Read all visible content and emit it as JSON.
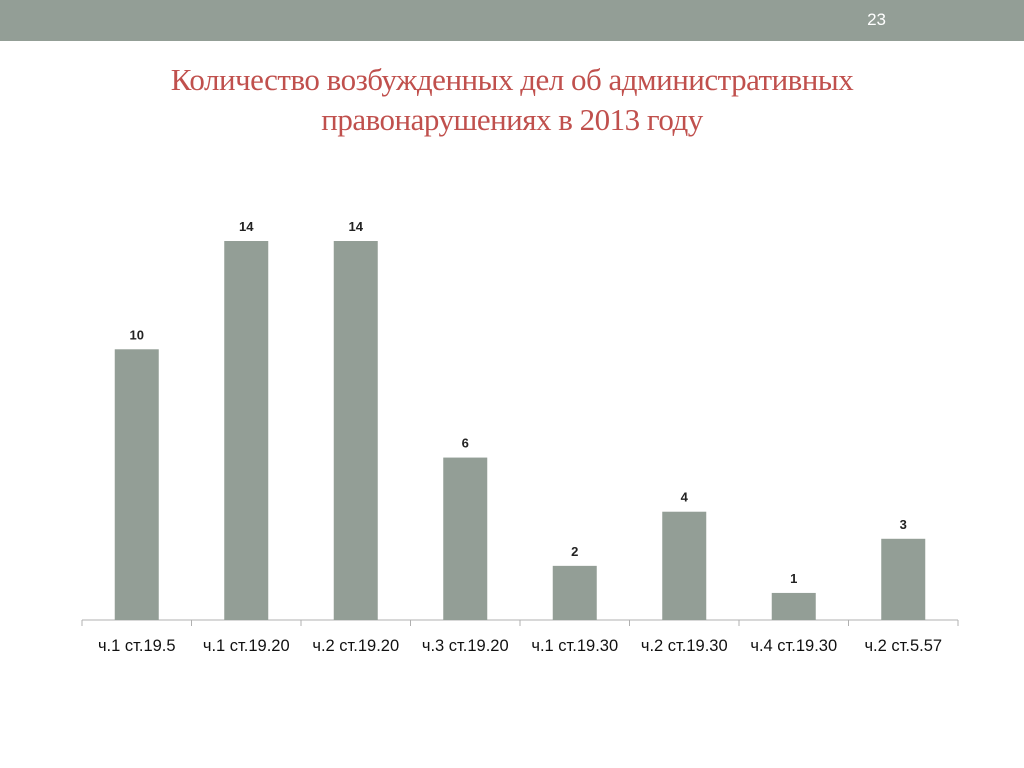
{
  "slide": {
    "number": "23",
    "title_line1": "Количество возбужденных дел об административных",
    "title_line2": "правонарушениях в 2013 году"
  },
  "colors": {
    "bar": "#939e96",
    "header_bar": "#939e96",
    "title": "#c0504d"
  },
  "chart_data": {
    "type": "bar",
    "title": "Количество возбужденных дел об административных правонарушениях в 2013 году",
    "categories": [
      "ч.1 ст.19.5",
      "ч.1 ст.19.20",
      "ч.2 ст.19.20",
      "ч.3 ст.19.20",
      "ч.1 ст.19.30",
      "ч.2 ст.19.30",
      "ч.4 ст.19.30",
      "ч.2 ст.5.57"
    ],
    "values": [
      10,
      14,
      14,
      6,
      2,
      4,
      1,
      3
    ],
    "data_labels": [
      "10",
      "14",
      "14",
      "6",
      "2",
      "4",
      "1",
      "3"
    ],
    "xlabel": "",
    "ylabel": "",
    "ylim": [
      0,
      14
    ],
    "grid": false,
    "legend": "none"
  }
}
